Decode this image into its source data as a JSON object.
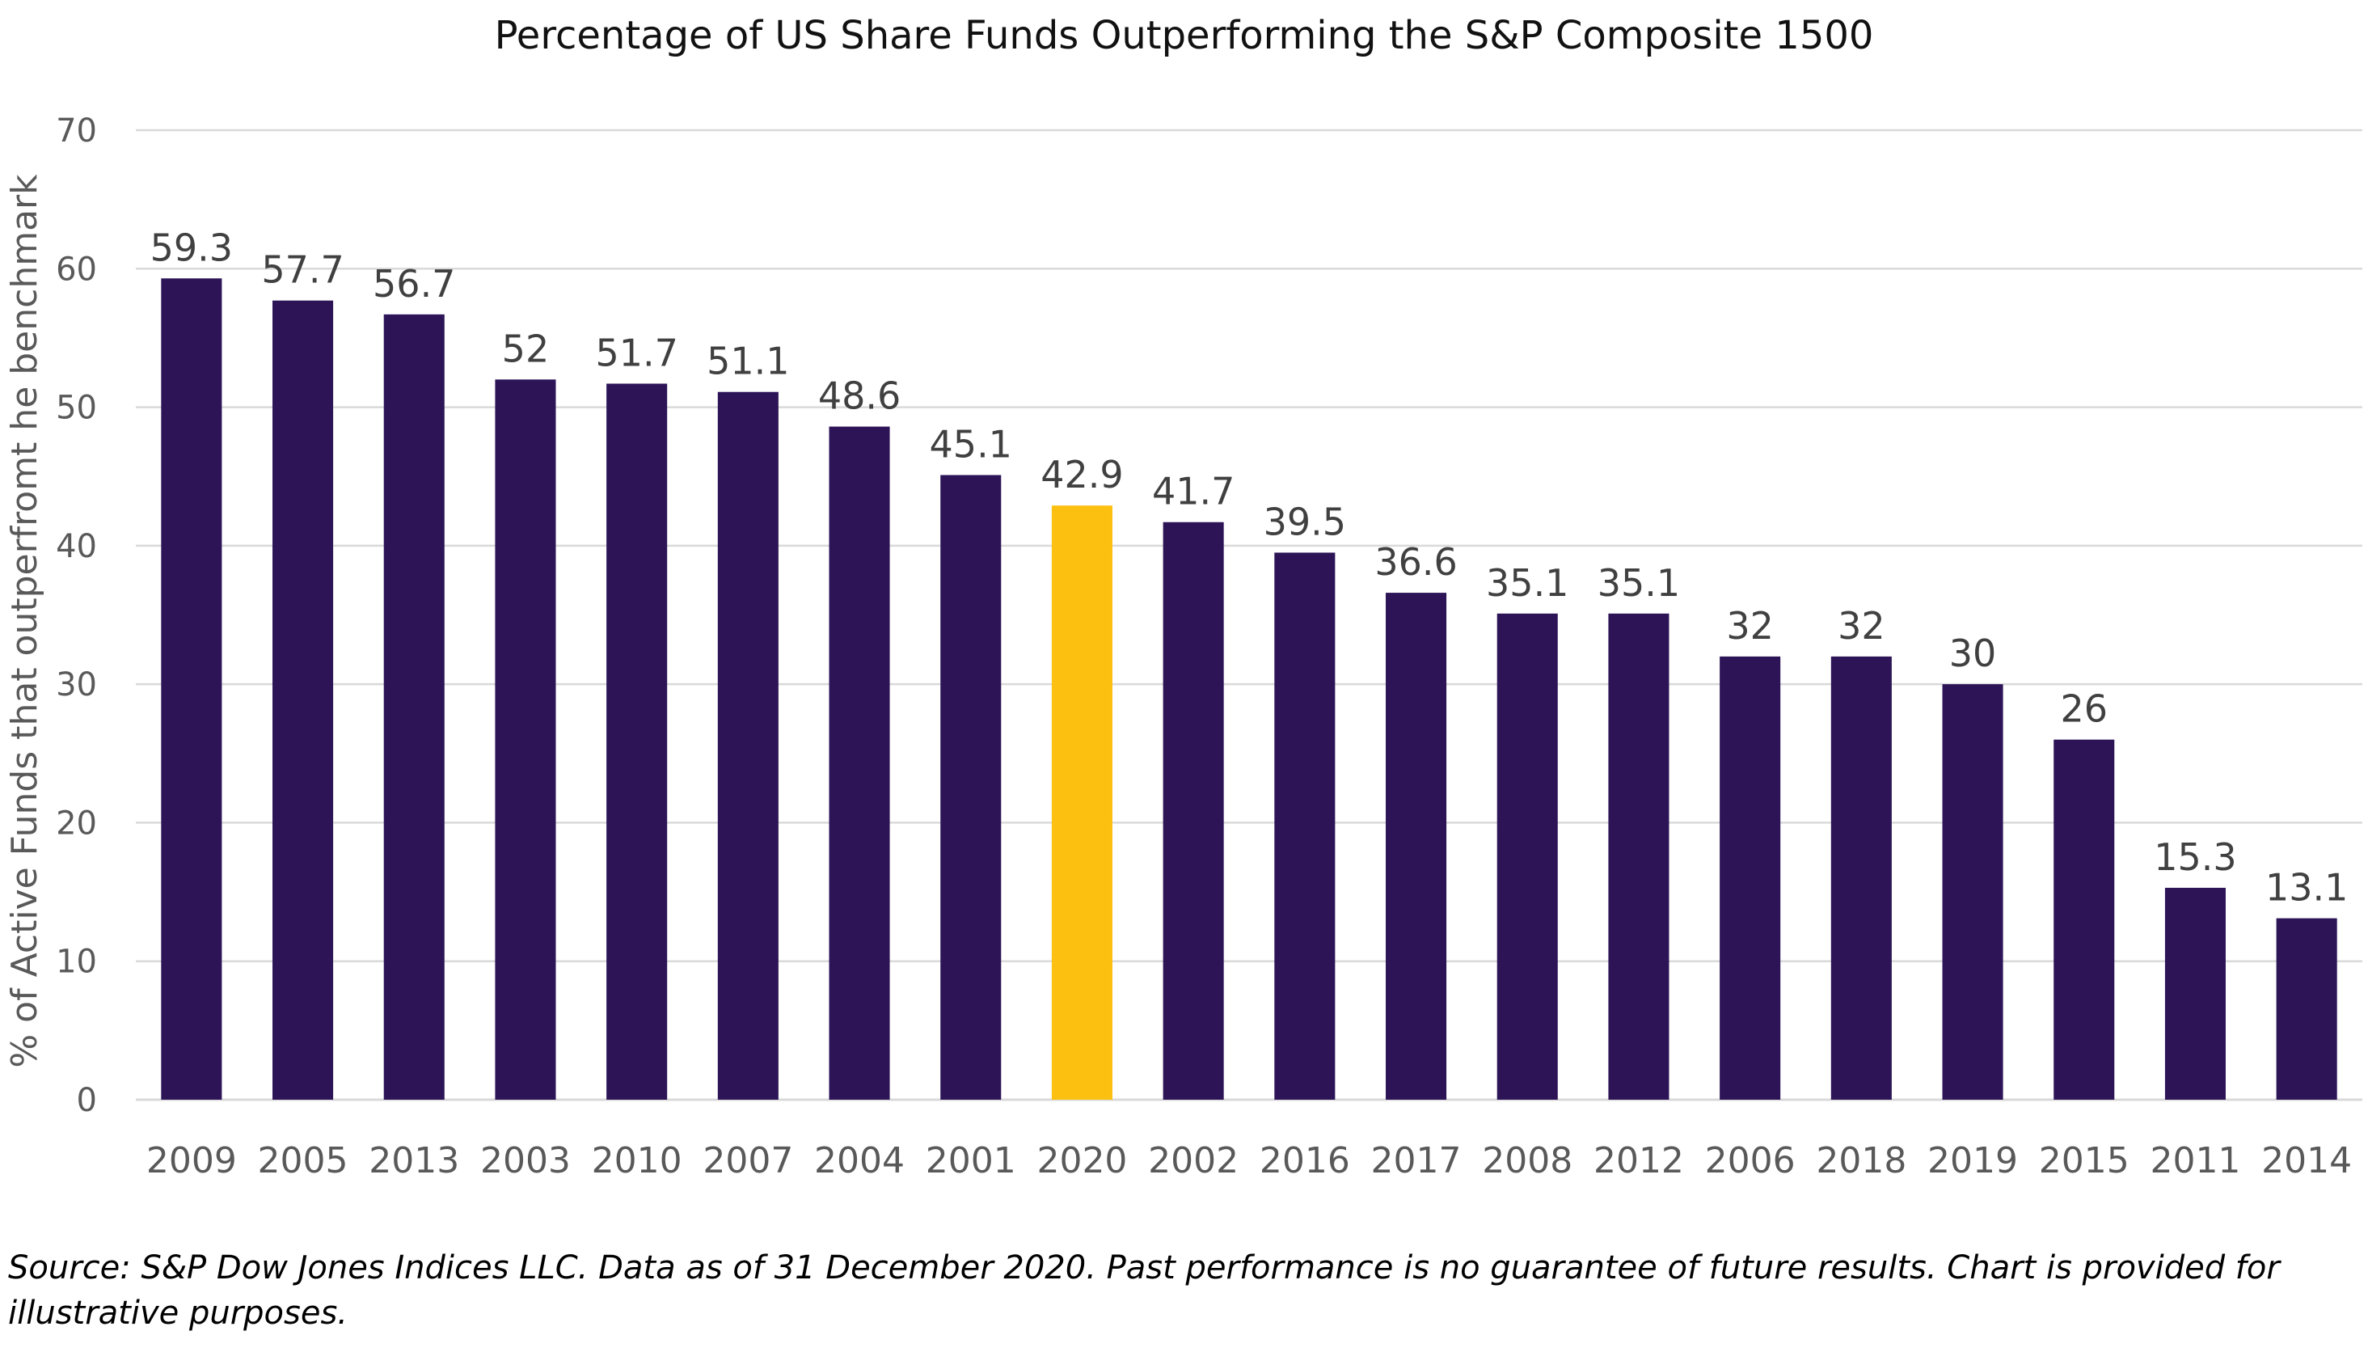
{
  "chart_data": {
    "type": "bar",
    "title": "Percentage of US Share Funds Outperforming the S&P Composite 1500",
    "xlabel": "",
    "ylabel": "% of Active Funds that outperfromt he benchmark",
    "ylim": [
      0,
      70
    ],
    "yticks": [
      0,
      10,
      20,
      30,
      40,
      50,
      60,
      70
    ],
    "grid": true,
    "legend": "none",
    "categories": [
      "2009",
      "2005",
      "2013",
      "2003",
      "2010",
      "2007",
      "2004",
      "2001",
      "2020",
      "2002",
      "2016",
      "2017",
      "2008",
      "2012",
      "2006",
      "2018",
      "2019",
      "2015",
      "2011",
      "2014"
    ],
    "values": [
      59.3,
      57.7,
      56.7,
      52,
      51.7,
      51.1,
      48.6,
      45.1,
      42.9,
      41.7,
      39.5,
      36.6,
      35.1,
      35.1,
      32,
      32,
      30,
      26,
      15.3,
      13.1
    ],
    "data_labels": [
      "59.3",
      "57.7",
      "56.7",
      "52",
      "51.7",
      "51.1",
      "48.6",
      "45.1",
      "42.9",
      "41.7",
      "39.5",
      "36.6",
      "35.1",
      "35.1",
      "32",
      "32",
      "30",
      "26",
      "15.3",
      "13.1"
    ],
    "highlight_category": "2020",
    "colors": {
      "bar": "#2c1457",
      "highlight": "#fcc010"
    }
  },
  "footnote": "Source: S&P Dow Jones Indices LLC. Data as of 31 December 2020. Past performance is no guarantee of future results. Chart is provided for illustrative purposes."
}
